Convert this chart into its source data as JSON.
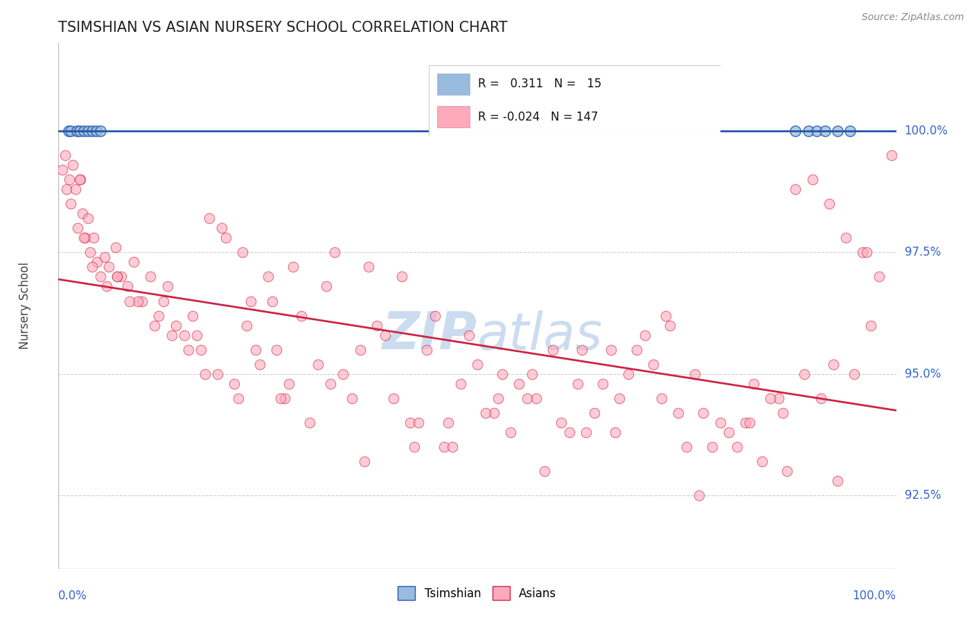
{
  "title": "TSIMSHIAN VS ASIAN NURSERY SCHOOL CORRELATION CHART",
  "source_text": "Source: ZipAtlas.com",
  "ylabel": "Nursery School",
  "x_min": 0.0,
  "x_max": 100.0,
  "y_min": 91.0,
  "y_max": 101.8,
  "yticks": [
    92.5,
    95.0,
    97.5,
    100.0
  ],
  "ytick_labels": [
    "92.5%",
    "95.0%",
    "97.5%",
    "100.0%"
  ],
  "legend_r_tsimshian": "0.311",
  "legend_n_tsimshian": "15",
  "legend_r_asian": "-0.024",
  "legend_n_asian": "147",
  "tsimshian_color": "#99bbdd",
  "asian_color": "#ffaabb",
  "trend_tsimshian_color": "#2255aa",
  "trend_asian_color": "#cc2244",
  "background_color": "#ffffff",
  "grid_color": "#aaaaaa",
  "title_color": "#222222",
  "axis_label_color": "#444444",
  "tick_label_color": "#3366cc",
  "watermark_color": "#ccdcf0",
  "tsimshian_x": [
    1.2,
    1.5,
    2.2,
    2.5,
    3.0,
    3.5,
    4.0,
    4.5,
    5.0,
    88.0,
    89.5,
    90.5,
    91.5,
    93.0,
    94.5
  ],
  "tsimshian_y": [
    100.0,
    100.0,
    100.0,
    100.0,
    100.0,
    100.0,
    100.0,
    100.0,
    100.0,
    100.0,
    100.0,
    100.0,
    100.0,
    100.0,
    100.0
  ],
  "asian_x": [
    0.5,
    0.8,
    1.0,
    1.3,
    1.5,
    1.7,
    2.0,
    2.3,
    2.6,
    2.9,
    3.2,
    3.5,
    3.8,
    4.2,
    4.6,
    5.0,
    5.5,
    6.0,
    6.8,
    7.5,
    8.2,
    9.0,
    10.0,
    11.0,
    12.0,
    13.0,
    14.0,
    15.0,
    16.0,
    17.0,
    18.0,
    19.0,
    20.0,
    21.0,
    22.0,
    23.0,
    24.0,
    25.0,
    26.0,
    27.0,
    28.0,
    29.0,
    30.0,
    32.0,
    34.0,
    36.0,
    38.0,
    40.0,
    42.0,
    44.0,
    46.0,
    48.0,
    50.0,
    52.0,
    54.0,
    56.0,
    58.0,
    60.0,
    62.0,
    64.0,
    66.0,
    68.0,
    70.0,
    72.0,
    74.0,
    76.0,
    78.0,
    80.0,
    82.0,
    84.0,
    86.0,
    88.0,
    90.0,
    92.0,
    94.0,
    96.0,
    98.0,
    99.5,
    4.0,
    5.8,
    7.0,
    9.5,
    11.5,
    13.5,
    15.5,
    17.5,
    19.5,
    21.5,
    23.5,
    25.5,
    27.5,
    31.0,
    35.0,
    39.0,
    43.0,
    47.0,
    51.0,
    55.0,
    59.0,
    63.0,
    67.0,
    71.0,
    75.0,
    79.0,
    83.0,
    87.0,
    91.0,
    95.0,
    97.0,
    33.0,
    37.0,
    41.0,
    45.0,
    49.0,
    53.0,
    57.0,
    61.0,
    65.0,
    69.0,
    73.0,
    77.0,
    81.0,
    85.0,
    89.0,
    93.0,
    2.5,
    8.5,
    16.5,
    26.5,
    36.5,
    46.5,
    56.5,
    66.5,
    76.5,
    86.5,
    96.5,
    3.0,
    7.0,
    12.5,
    22.5,
    32.5,
    42.5,
    52.5,
    62.5,
    72.5,
    82.5,
    92.5
  ],
  "asian_y": [
    99.2,
    99.5,
    98.8,
    99.0,
    98.5,
    99.3,
    98.8,
    98.0,
    99.0,
    98.3,
    97.8,
    98.2,
    97.5,
    97.8,
    97.3,
    97.0,
    97.4,
    97.2,
    97.6,
    97.0,
    96.8,
    97.3,
    96.5,
    97.0,
    96.2,
    96.8,
    96.0,
    95.8,
    96.2,
    95.5,
    98.2,
    95.0,
    97.8,
    94.8,
    97.5,
    96.5,
    95.2,
    97.0,
    95.5,
    94.5,
    97.2,
    96.2,
    94.0,
    96.8,
    95.0,
    95.5,
    96.0,
    94.5,
    94.0,
    95.5,
    93.5,
    94.8,
    95.2,
    94.2,
    93.8,
    94.5,
    93.0,
    94.0,
    94.8,
    94.2,
    95.5,
    95.0,
    95.8,
    94.5,
    94.2,
    95.0,
    93.5,
    93.8,
    94.0,
    93.2,
    94.5,
    98.8,
    99.0,
    98.5,
    97.8,
    97.5,
    97.0,
    99.5,
    97.2,
    96.8,
    97.0,
    96.5,
    96.0,
    95.8,
    95.5,
    95.0,
    98.0,
    94.5,
    95.5,
    96.5,
    94.8,
    95.2,
    94.5,
    95.8,
    94.0,
    93.5,
    94.2,
    94.8,
    95.5,
    93.8,
    94.5,
    95.2,
    93.5,
    94.0,
    94.8,
    93.0,
    94.5,
    95.0,
    96.0,
    97.5,
    97.2,
    97.0,
    96.2,
    95.8,
    95.0,
    94.5,
    93.8,
    94.8,
    95.5,
    96.0,
    94.2,
    93.5,
    94.5,
    95.0,
    92.8,
    99.0,
    96.5,
    95.8,
    94.5,
    93.2,
    94.0,
    95.0,
    93.8,
    92.5,
    94.2,
    97.5,
    97.8,
    97.0,
    96.5,
    96.0,
    94.8,
    93.5,
    94.5,
    95.5,
    96.2,
    94.0,
    95.2
  ]
}
